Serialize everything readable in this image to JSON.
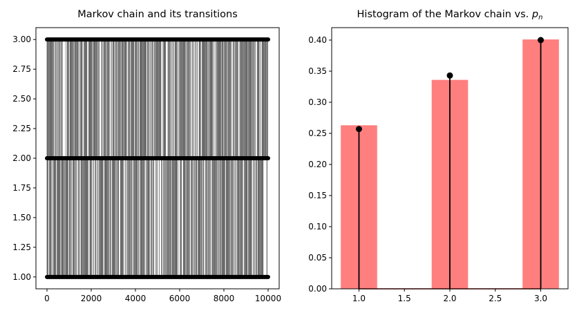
{
  "chart_data": [
    {
      "type": "line",
      "title": "Markov chain and its transitions",
      "xlabel": "",
      "ylabel": "",
      "xlim": [
        -500,
        10500
      ],
      "ylim": [
        0.9,
        3.1
      ],
      "x_ticks": [
        0,
        2000,
        4000,
        6000,
        8000,
        10000
      ],
      "x_tick_labels": [
        "0",
        "2000",
        "4000",
        "6000",
        "8000",
        "10000"
      ],
      "y_ticks": [
        1.0,
        1.25,
        1.5,
        1.75,
        2.0,
        2.25,
        2.5,
        2.75,
        3.0
      ],
      "y_tick_labels": [
        "1.00",
        "1.25",
        "1.50",
        "1.75",
        "2.00",
        "2.25",
        "2.50",
        "2.75",
        "3.00"
      ],
      "n_steps": 10000,
      "states": [
        1,
        2,
        3
      ],
      "marker_color": "#000000",
      "line_color": "#4d4d4d",
      "grid": false
    },
    {
      "type": "bar",
      "title": "Histogram of the Markov chain vs. ",
      "title_math": "p",
      "title_math_sub": "n",
      "xlabel": "",
      "ylabel": "",
      "xlim": [
        0.7,
        3.3
      ],
      "ylim": [
        0.0,
        0.42
      ],
      "x_ticks": [
        1.0,
        1.5,
        2.0,
        2.5,
        3.0
      ],
      "x_tick_labels": [
        "1.0",
        "1.5",
        "2.0",
        "2.5",
        "3.0"
      ],
      "y_ticks": [
        0.0,
        0.05,
        0.1,
        0.15,
        0.2,
        0.25,
        0.3,
        0.35,
        0.4
      ],
      "y_tick_labels": [
        "0.00",
        "0.05",
        "0.10",
        "0.15",
        "0.20",
        "0.25",
        "0.30",
        "0.35",
        "0.40"
      ],
      "series": [
        {
          "categories": [
            1.0,
            2.0,
            3.0
          ],
          "values": [
            0.263,
            0.336,
            0.401
          ],
          "color": "#ff7f7f"
        },
        {
          "categories": [
            1.0,
            2.0,
            3.0
          ],
          "values": [
            0.257,
            0.343,
            0.4
          ],
          "color": "#000000"
        }
      ],
      "baseline_color": "#8b0000",
      "grid": false
    }
  ]
}
